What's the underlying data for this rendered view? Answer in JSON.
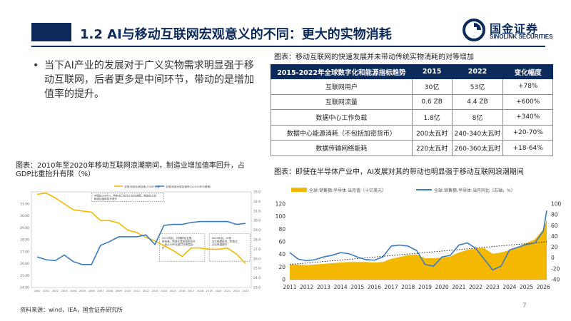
{
  "header": {
    "title": "1.2 AI与移动互联网宏观意义的不同：更大的实物消耗",
    "brand_color": "#0d2a5c",
    "logo_cn": "国金证券",
    "logo_en": "SINOLINK SECURITIES"
  },
  "bullet": {
    "text": "当下AI产业的发展对于广义实物需求明显强于移动互联网，后者更多是中间环节，带动的是增加值率的提升。"
  },
  "table": {
    "caption": "图表：移动互联网的快速发展并未带动传统实物消耗的对等增加",
    "headers": [
      "2015-2022年全球数字化和能源指标趋势",
      "2015",
      "2022",
      "变化幅度"
    ],
    "rows": [
      [
        "互联网用户",
        "30亿",
        "53亿",
        "+78%"
      ],
      [
        "互联网流量",
        "0.6 ZB",
        "4.4 ZB",
        "+600%"
      ],
      [
        "数据中心工作负载",
        "1.8亿",
        "8亿",
        "+340%"
      ],
      [
        "数据中心能源消耗（不包括加密货币）",
        "200太瓦时",
        "240-340太瓦时",
        "+20-70%"
      ],
      [
        "数据传输网络能耗",
        "220太瓦时",
        "260-360太瓦时",
        "+18-64%"
      ]
    ]
  },
  "left_chart": {
    "caption": "图表：2010年至2020年移动互联网浪潮期间，制造业增加值率回升，占GDP比重抬升有限（%）",
    "legend": [
      "全国:制造业增加值:占GDP比重",
      "全国:制造业增加值率(以2010年为基期)"
    ],
    "annotations": [
      "中国加入WTO，带来出口拉动工业化进程，制造业占比和增加值率同步提升",
      "2010年后，伴随移动互联网发展，制造业增加值率回升，而占GDP比重并未明显抬升",
      "2020年后，AI带动大规模投资，制造业占比有望提升"
    ],
    "colors": {
      "series1": "#f5b800",
      "series2": "#3b7bc2"
    },
    "chart_data": {
      "type": "line",
      "x": [
        "2000",
        "2001",
        "2002",
        "2003",
        "2004",
        "2005",
        "2006",
        "2007",
        "2008",
        "2009",
        "2010",
        "2011",
        "2012",
        "2013",
        "2014",
        "2015",
        "2016",
        "2017",
        "2018",
        "2019",
        "2020",
        "2021",
        "2022",
        "2023"
      ],
      "series": [
        {
          "name": "全国:制造业增加值:占GDP比重",
          "axis": "left",
          "values": [
            31.8,
            31.9,
            31.5,
            31.0,
            30.5,
            30.4,
            30.3,
            29.6,
            29.6,
            29.4,
            28.8,
            28.6,
            28.2,
            27.9,
            27.5,
            27.1,
            26.6,
            27.3,
            27.3,
            27.2,
            27.2,
            27.3,
            26.8,
            26.0
          ]
        },
        {
          "name": "全国:制造业增加值率(以2010年为基期)",
          "axis": "right",
          "values": [
            26.2,
            25.9,
            25.8,
            26.4,
            25.7,
            25.4,
            25.4,
            27.4,
            27.8,
            28.3,
            28.3,
            28.3,
            28.5,
            27.5,
            29.5,
            29.6,
            29.6,
            29.8,
            29.9,
            29.9,
            29.9,
            29.9,
            29.6,
            29.7
          ]
        }
      ],
      "left_ticks": [
        "31.00",
        "30.00",
        "29.00",
        "28.00",
        "27.00",
        "26.00",
        "25.00",
        "24.00"
      ],
      "right_ticks": [
        "33.0",
        "32.0",
        "31.0",
        "30.0",
        "29.0",
        "28.0",
        "27.0",
        "26.0",
        "25.0",
        "24.0",
        "23.0"
      ],
      "ylim_left": [
        24,
        32
      ],
      "ylim_right": [
        23,
        33
      ]
    }
  },
  "right_chart": {
    "caption": "图表：即使在半导体产业中，AI发展对其的带动也明显强于移动互联网浪潮期间",
    "legend": [
      "全球:销售额:半导体:当月值（十亿美元）",
      "全球:销售额:半导体:当月同比（右轴，%）"
    ],
    "colors": {
      "area": "#f5b800",
      "line": "#3b7bc2",
      "trend": "#222222"
    },
    "chart_data": {
      "type": "area",
      "x_ticks": [
        "2011",
        "2012",
        "2013",
        "2014",
        "2015",
        "2016",
        "2017",
        "2018",
        "2019",
        "2020",
        "2021",
        "2022",
        "2023",
        "2024",
        "2025",
        "2026"
      ],
      "left_ticks": [
        "120",
        "100",
        "80",
        "60",
        "40",
        "20",
        "0"
      ],
      "right_ticks": [
        "100",
        "80",
        "60",
        "40",
        "20",
        "0",
        "-20",
        "-40"
      ],
      "ylim_left": [
        0,
        120
      ],
      "ylim_right": [
        -40,
        100
      ],
      "sales_x": [
        2011,
        2011.5,
        2012,
        2012.5,
        2013,
        2013.5,
        2014,
        2014.5,
        2015,
        2015.5,
        2016,
        2016.5,
        2017,
        2017.5,
        2018,
        2018.5,
        2019,
        2019.5,
        2020,
        2020.5,
        2021,
        2021.5,
        2022,
        2022.5,
        2023,
        2023.5,
        2024,
        2024.5,
        2025,
        2025.5,
        2026,
        2026.2
      ],
      "sales_values": [
        24,
        24,
        23,
        24,
        25,
        26,
        27,
        28,
        28,
        28,
        27,
        28,
        33,
        36,
        39,
        40,
        34,
        34,
        35,
        37,
        43,
        47,
        50,
        50,
        41,
        43,
        47,
        52,
        58,
        64,
        80,
        95
      ],
      "yoy_x": [
        2011,
        2011.5,
        2012,
        2012.5,
        2013,
        2013.5,
        2014,
        2014.5,
        2015,
        2015.5,
        2016,
        2016.5,
        2017,
        2017.5,
        2018,
        2018.5,
        2019,
        2019.5,
        2020,
        2020.5,
        2021,
        2021.5,
        2022,
        2022.5,
        2023,
        2023.5,
        2024,
        2024.5,
        2025,
        2025.5,
        2026,
        2026.2
      ],
      "yoy_values": [
        10,
        -2,
        -5,
        -3,
        2,
        5,
        10,
        8,
        2,
        -3,
        -4,
        2,
        22,
        24,
        22,
        14,
        -12,
        -15,
        2,
        5,
        24,
        28,
        18,
        -2,
        -22,
        -15,
        15,
        20,
        25,
        28,
        50,
        88
      ]
    }
  },
  "footer": {
    "source": "资料来源：wind，IEA，国金证券研究所",
    "page": "7"
  }
}
